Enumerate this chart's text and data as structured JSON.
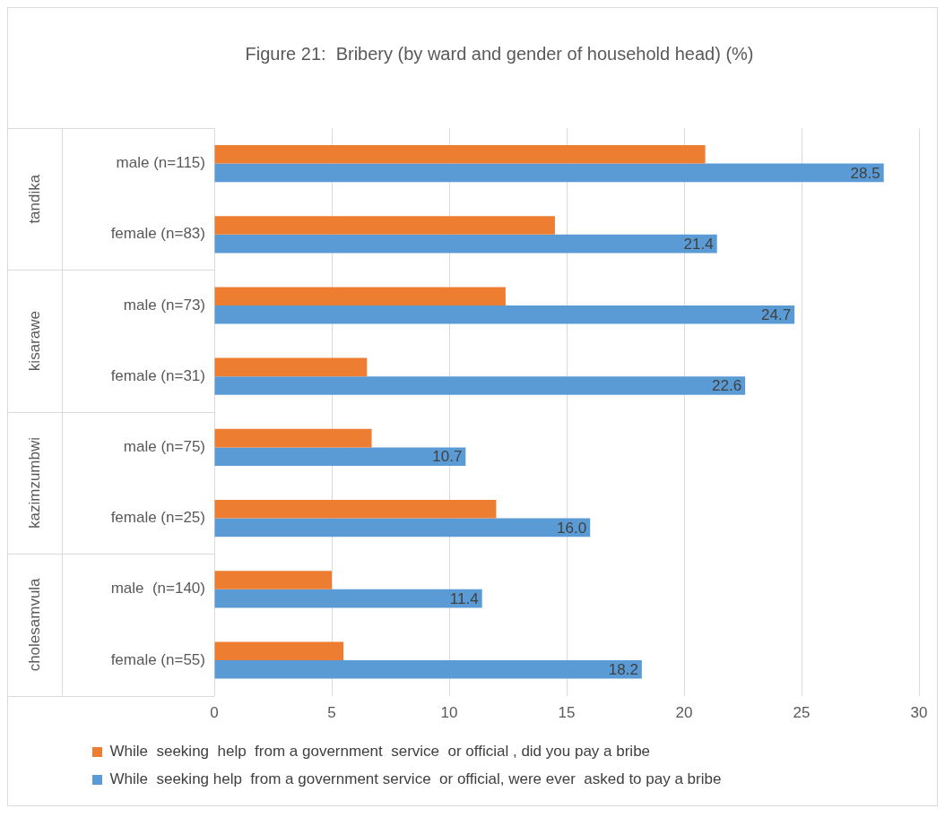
{
  "chart_data": {
    "type": "bar",
    "orientation": "horizontal",
    "title": "Figure 21:  Bribery (by ward and gender of household head) (%)",
    "categories": [
      "male (n=115)",
      "female (n=83)",
      "male (n=73)",
      "female (n=31)",
      "male (n=75)",
      "female (n=25)",
      "male  (n=140)",
      "female (n=55)"
    ],
    "series": [
      {
        "name": "While  seeking  help  from a government  service  or official , did you pay a bribe",
        "color": "#ed7d31",
        "values": [
          20.9,
          14.5,
          12.4,
          6.5,
          6.7,
          12.0,
          5.0,
          5.5
        ]
      },
      {
        "name": "While  seeking help  from a government service  or official, were ever  asked to pay a bribe",
        "color": "#5b9bd5",
        "values": [
          28.5,
          21.4,
          24.7,
          22.6,
          10.7,
          16.0,
          11.4,
          18.2
        ],
        "value_labels": [
          "28.5",
          "21.4",
          "24.7",
          "22.6",
          "10.7",
          "16.0",
          "11.4",
          "18.2"
        ]
      }
    ],
    "annotations": [
      "tandika",
      "kisarawe",
      "kazimzumbwi",
      "cholesamvula"
    ],
    "xlim": [
      0,
      30
    ],
    "xticks": [
      0,
      5,
      10,
      15,
      20,
      25,
      30
    ],
    "grid": "x",
    "legend": "bottom"
  }
}
